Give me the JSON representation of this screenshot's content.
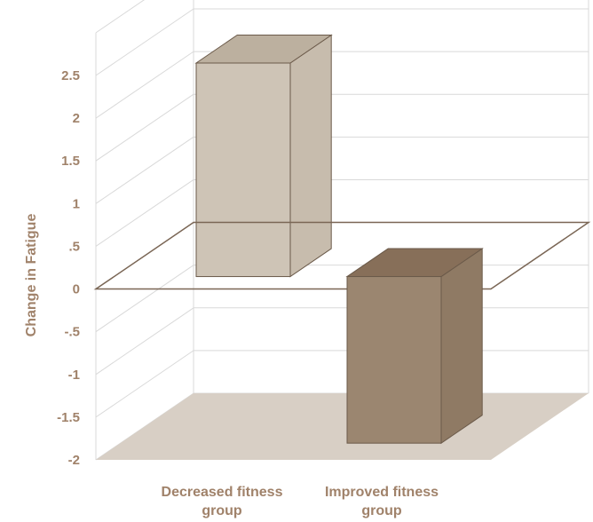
{
  "chart_data": {
    "type": "bar",
    "categories": [
      [
        "Decreased fitness",
        "group"
      ],
      [
        "Improved fitness",
        "group"
      ]
    ],
    "values": [
      2.5,
      -1.95
    ],
    "ylabel": "Change in Fatigue",
    "ylim": [
      -2,
      2.5
    ],
    "yticks": [
      {
        "value": 2.5,
        "label": "2.5"
      },
      {
        "value": 2,
        "label": "2"
      },
      {
        "value": 1.5,
        "label": "1.5"
      },
      {
        "value": 1,
        "label": "1"
      },
      {
        "value": 0.5,
        "label": ".5"
      },
      {
        "value": 0,
        "label": "0"
      },
      {
        "value": -0.5,
        "label": "-.5"
      },
      {
        "value": -1,
        "label": "-1"
      },
      {
        "value": -1.5,
        "label": "-1.5"
      },
      {
        "value": -2,
        "label": "-2"
      }
    ],
    "grid": true,
    "legend": "none"
  },
  "colors": {
    "bar_decreased_front": "#cec4b6",
    "bar_decreased_side": "#c7bcad",
    "bar_decreased_top": "#bcb09f",
    "bar_improved_front": "#9b8670",
    "bar_improved_side": "#8f7a64",
    "bar_improved_top": "#876f59",
    "bar_edge": "#6b5a4a",
    "floor": "#d8cfc5",
    "grid": "#d9d9d9",
    "zero_plane": "#7a6655",
    "text": "#a0826a"
  }
}
